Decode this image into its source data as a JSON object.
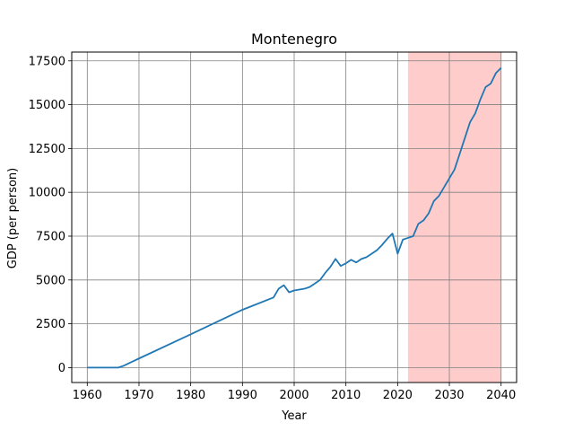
{
  "chart_data": {
    "type": "line",
    "title": "Montenegro",
    "xlabel": "Year",
    "ylabel": "GDP (per person)",
    "xlim": [
      1957,
      2043
    ],
    "ylim": [
      -850,
      18000
    ],
    "xticks": [
      1960,
      1970,
      1980,
      1990,
      2000,
      2010,
      2020,
      2030,
      2040
    ],
    "yticks": [
      0,
      2500,
      5000,
      7500,
      10000,
      12500,
      15000,
      17500
    ],
    "grid": true,
    "line_color": "#1f77b4",
    "highlight": {
      "x_start": 2022,
      "x_end": 2040,
      "color": "#ffcccc"
    },
    "series": [
      {
        "x": [
          1960,
          1961,
          1962,
          1963,
          1964,
          1965,
          1966,
          1967,
          1968,
          1969,
          1970,
          1980,
          1990,
          1996,
          1997,
          1998,
          1999,
          2000,
          2001,
          2002,
          2003,
          2004,
          2005,
          2006,
          2007,
          2008,
          2009,
          2010,
          2011,
          2012,
          2013,
          2014,
          2015,
          2016,
          2017,
          2018,
          2019,
          2020,
          2021,
          2022,
          2023,
          2024,
          2025,
          2026,
          2027,
          2028,
          2029,
          2030,
          2031,
          2032,
          2033,
          2034,
          2035,
          2036,
          2037,
          2038,
          2039,
          2040
        ],
        "y": [
          0,
          0,
          0,
          0,
          0,
          0,
          0,
          100,
          240,
          380,
          520,
          1900,
          3300,
          4000,
          4500,
          4700,
          4300,
          4400,
          4450,
          4500,
          4600,
          4800,
          5000,
          5400,
          5750,
          6200,
          5800,
          5950,
          6150,
          6000,
          6200,
          6300,
          6500,
          6700,
          7000,
          7350,
          7650,
          6500,
          7300,
          7400,
          7500,
          8200,
          8400,
          8800,
          9500,
          9800,
          10300,
          10800,
          11300,
          12200,
          13100,
          14000,
          14500,
          15300,
          16000,
          16200,
          16800,
          17100
        ]
      }
    ]
  }
}
